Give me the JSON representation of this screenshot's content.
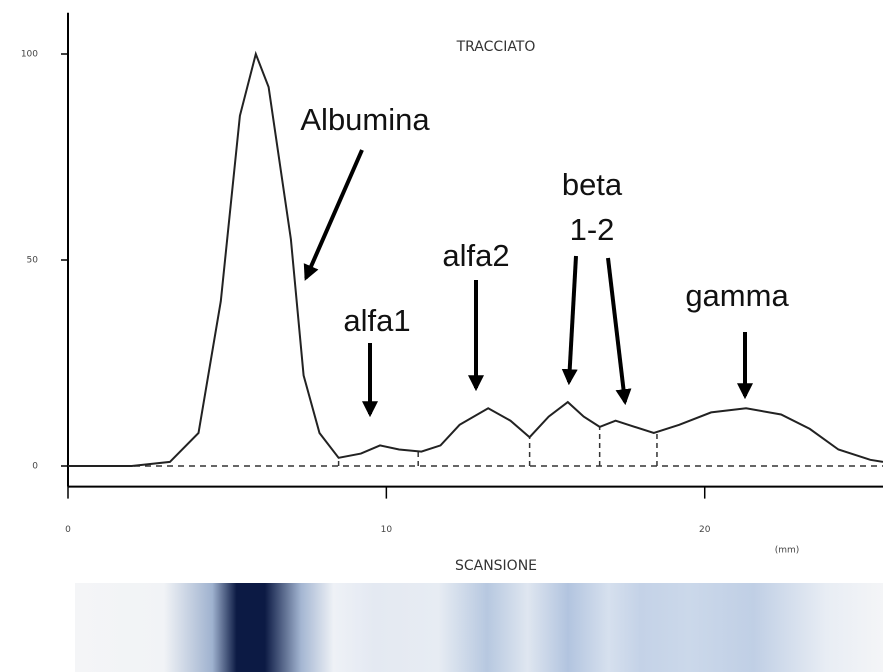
{
  "chart_data": {
    "type": "line",
    "title": "TRACCIATO",
    "subtitle": "SCANSIONE",
    "x_label": "(mm)",
    "x": [
      0,
      2,
      3.2,
      4.1,
      4.8,
      5.4,
      5.9,
      6.3,
      7.0,
      7.4,
      7.9,
      8.5,
      9.2,
      9.8,
      10.4,
      11.1,
      11.7,
      12.3,
      13.2,
      13.9,
      14.5,
      15.1,
      15.7,
      16.2,
      16.7,
      17.2,
      17.6,
      18.4,
      19.2,
      20.2,
      21.3,
      22.4,
      23.3,
      24.2,
      25.2,
      25.6
    ],
    "values": [
      0,
      0,
      1,
      8,
      40,
      85,
      100,
      92,
      55,
      22,
      8,
      2,
      3,
      5,
      4,
      3.5,
      5,
      10,
      14,
      11,
      7,
      12,
      15.5,
      12,
      9.5,
      11,
      10,
      8,
      10,
      13,
      14,
      12.5,
      9,
      4,
      1.5,
      1
    ],
    "color": "#222222",
    "dividers": [
      8.5,
      11,
      14.5,
      16.7,
      18.5
    ],
    "annotations": [
      "Albumina",
      "alfa1",
      "alfa2",
      "beta",
      "1-2",
      "gamma"
    ],
    "xlim": [
      0,
      25.6
    ],
    "xticks": [
      0,
      10,
      20
    ],
    "ylim": [
      -5,
      110
    ],
    "yticks": [
      0,
      50,
      100
    ]
  }
}
